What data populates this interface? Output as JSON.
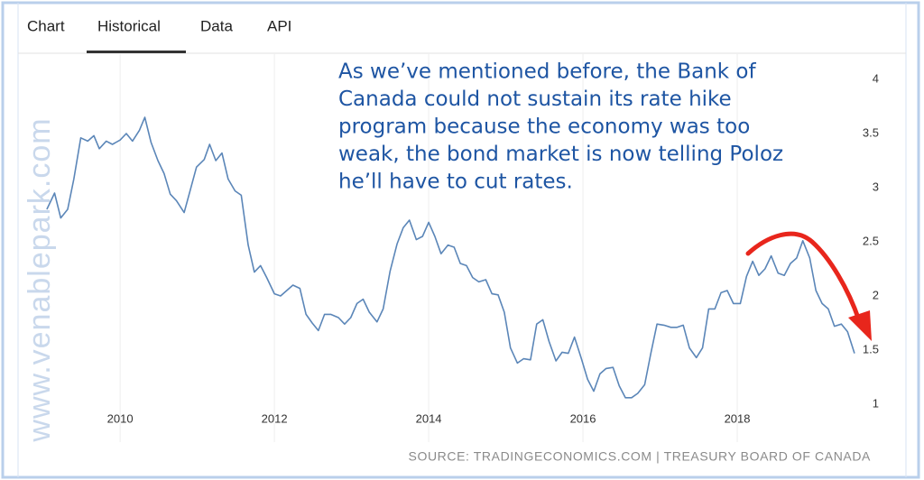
{
  "tabs": [
    "Chart",
    "Historical",
    "Data",
    "API"
  ],
  "watermark": "www.venablepark.com",
  "chart_data": {
    "type": "line",
    "annotation": [
      "As we’ve mentioned before, the Bank of",
      "Canada could not sustain its rate hike",
      "program because the economy was too",
      "weak, the bond market is now telling Poloz",
      "he’ll have to cut rates."
    ],
    "source": "SOURCE: TRADINGECONOMICS.COM | TREASURY BOARD OF CANADA",
    "x": [
      2009.05,
      2009.15,
      2009.23,
      2009.32,
      2009.4,
      2009.49,
      2009.58,
      2009.66,
      2009.73,
      2009.82,
      2009.9,
      2010.0,
      2010.08,
      2010.16,
      2010.25,
      2010.32,
      2010.4,
      2010.49,
      2010.57,
      2010.65,
      2010.73,
      2010.83,
      2010.91,
      2010.99,
      2011.09,
      2011.16,
      2011.24,
      2011.32,
      2011.4,
      2011.49,
      2011.57,
      2011.66,
      2011.74,
      2011.82,
      2011.9,
      2012.0,
      2012.08,
      2012.16,
      2012.24,
      2012.33,
      2012.41,
      2012.49,
      2012.57,
      2012.65,
      2012.73,
      2012.83,
      2012.91,
      2012.99,
      2013.07,
      2013.15,
      2013.23,
      2013.33,
      2013.41,
      2013.5,
      2013.59,
      2013.67,
      2013.75,
      2013.84,
      2013.92,
      2014.0,
      2014.08,
      2014.16,
      2014.25,
      2014.33,
      2014.41,
      2014.49,
      2014.57,
      2014.65,
      2014.74,
      2014.82,
      2014.9,
      2014.98,
      2015.06,
      2015.15,
      2015.23,
      2015.32,
      2015.4,
      2015.48,
      2015.56,
      2015.65,
      2015.73,
      2015.81,
      2015.89,
      2015.98,
      2016.06,
      2016.14,
      2016.22,
      2016.3,
      2016.39,
      2016.47,
      2016.55,
      2016.63,
      2016.71,
      2016.8,
      2016.88,
      2016.96,
      2017.05,
      2017.14,
      2017.22,
      2017.3,
      2017.38,
      2017.47,
      2017.55,
      2017.63,
      2017.71,
      2017.79,
      2017.87,
      2017.95,
      2018.04,
      2018.12,
      2018.2,
      2018.28,
      2018.36,
      2018.44,
      2018.53,
      2018.61,
      2018.69,
      2018.77,
      2018.85,
      2018.94,
      2019.02,
      2019.1,
      2019.18,
      2019.26,
      2019.35,
      2019.43,
      2019.52
    ],
    "series": [
      {
        "color": "#5b86b8",
        "values": [
          2.8,
          2.95,
          2.72,
          2.8,
          3.08,
          3.46,
          3.43,
          3.48,
          3.36,
          3.43,
          3.4,
          3.44,
          3.5,
          3.43,
          3.53,
          3.65,
          3.42,
          3.25,
          3.13,
          2.94,
          2.88,
          2.77,
          2.98,
          3.19,
          3.26,
          3.4,
          3.25,
          3.32,
          3.08,
          2.97,
          2.93,
          2.47,
          2.22,
          2.28,
          2.17,
          2.02,
          2.0,
          2.05,
          2.1,
          2.07,
          1.83,
          1.75,
          1.68,
          1.83,
          1.83,
          1.8,
          1.74,
          1.8,
          1.93,
          1.97,
          1.85,
          1.76,
          1.88,
          2.23,
          2.48,
          2.63,
          2.7,
          2.52,
          2.55,
          2.68,
          2.55,
          2.39,
          2.47,
          2.45,
          2.3,
          2.28,
          2.17,
          2.13,
          2.15,
          2.02,
          2.01,
          1.85,
          1.52,
          1.38,
          1.42,
          1.41,
          1.74,
          1.78,
          1.58,
          1.4,
          1.48,
          1.47,
          1.62,
          1.42,
          1.23,
          1.12,
          1.28,
          1.33,
          1.34,
          1.17,
          1.06,
          1.06,
          1.1,
          1.18,
          1.47,
          1.74,
          1.73,
          1.71,
          1.71,
          1.73,
          1.52,
          1.43,
          1.52,
          1.88,
          1.88,
          2.03,
          2.05,
          1.93,
          1.93,
          2.18,
          2.32,
          2.19,
          2.25,
          2.37,
          2.21,
          2.19,
          2.3,
          2.35,
          2.51,
          2.35,
          2.05,
          1.93,
          1.88,
          1.72,
          1.74,
          1.67,
          1.47
        ]
      }
    ],
    "xlim": [
      2008.7,
      2020.0
    ],
    "xticks": [
      2010,
      2012,
      2014,
      2016,
      2018
    ],
    "ylim": [
      0.9,
      4.2
    ],
    "yticks": [
      1,
      1.5,
      2,
      2.5,
      3,
      3.5,
      4
    ],
    "xgrid": true
  }
}
